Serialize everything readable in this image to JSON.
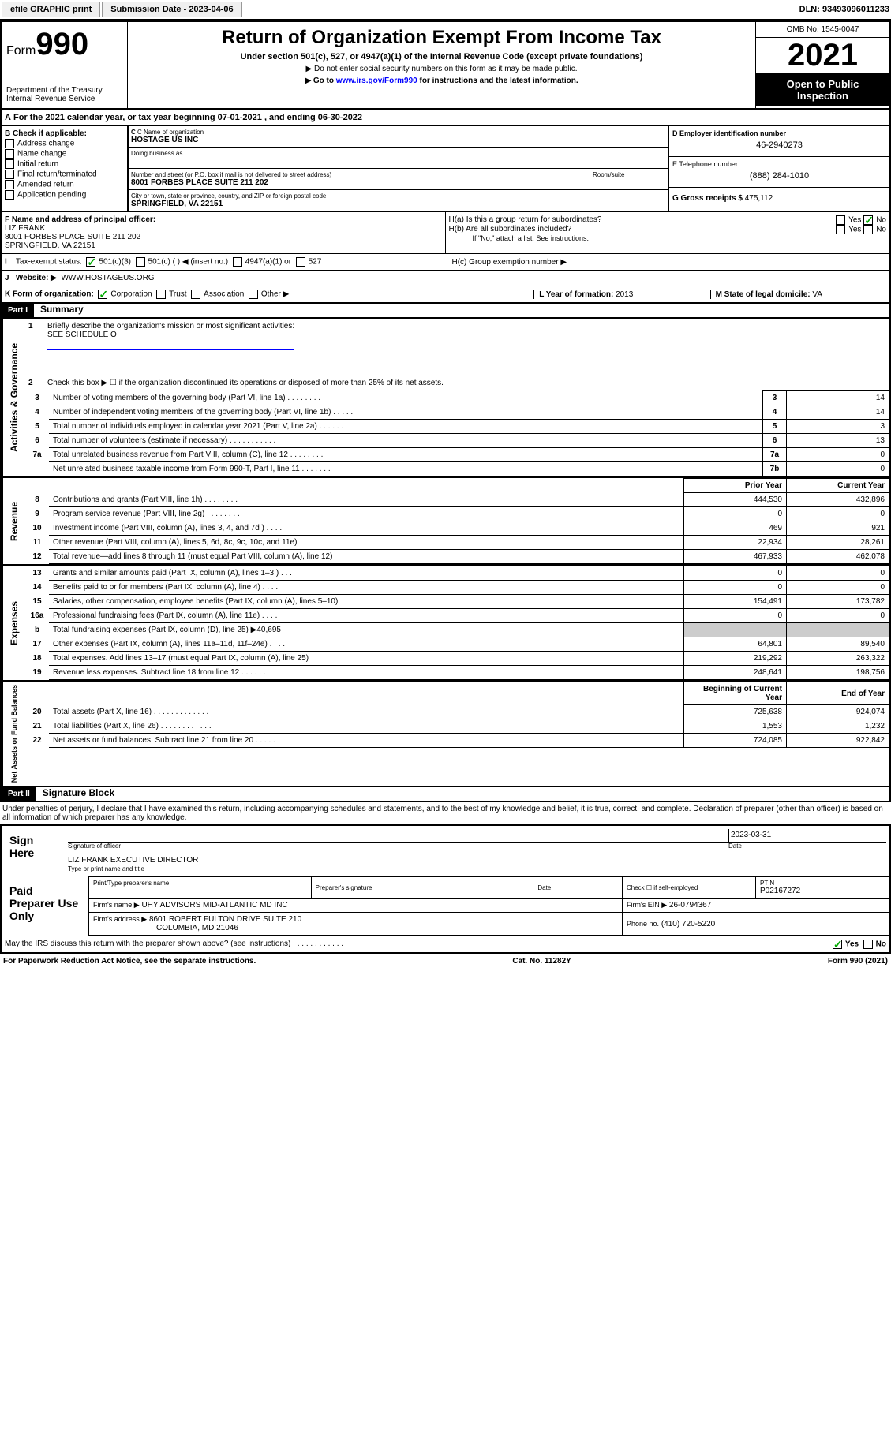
{
  "toolbar": {
    "efile": "efile GRAPHIC print",
    "submission": "Submission Date - 2023-04-06",
    "dln": "DLN: 93493096011233"
  },
  "header": {
    "form": "Form",
    "formnum": "990",
    "dept": "Department of the Treasury Internal Revenue Service",
    "title": "Return of Organization Exempt From Income Tax",
    "subtitle": "Under section 501(c), 527, or 4947(a)(1) of the Internal Revenue Code (except private foundations)",
    "note1": "▶ Do not enter social security numbers on this form as it may be made public.",
    "note2_pre": "▶ Go to ",
    "note2_link": "www.irs.gov/Form990",
    "note2_post": " for instructions and the latest information.",
    "omb": "OMB No. 1545-0047",
    "year": "2021",
    "open": "Open to Public Inspection"
  },
  "lineA": "For the 2021 calendar year, or tax year beginning 07-01-2021   , and ending 06-30-2022",
  "B": {
    "label": "B Check if applicable:",
    "opts": [
      "Address change",
      "Name change",
      "Initial return",
      "Final return/terminated",
      "Amended return",
      "Application pending"
    ]
  },
  "C": {
    "name_lbl": "C Name of organization",
    "name": "HOSTAGE US INC",
    "dba_lbl": "Doing business as",
    "dba": "",
    "addr_lbl": "Number and street (or P.O. box if mail is not delivered to street address)",
    "addr": "8001 FORBES PLACE SUITE 211 202",
    "room_lbl": "Room/suite",
    "city_lbl": "City or town, state or province, country, and ZIP or foreign postal code",
    "city": "SPRINGFIELD, VA  22151"
  },
  "D": {
    "lbl": "D Employer identification number",
    "val": "46-2940273"
  },
  "E": {
    "lbl": "E Telephone number",
    "val": "(888) 284-1010"
  },
  "G": {
    "lbl": "G Gross receipts $",
    "val": "475,112"
  },
  "F": {
    "lbl": "F  Name and address of principal officer:",
    "name": "LIZ FRANK",
    "addr": "8001 FORBES PLACE SUITE 211 202",
    "city": "SPRINGFIELD, VA  22151"
  },
  "H": {
    "a": "H(a)  Is this a group return for subordinates?",
    "b": "H(b)  Are all subordinates included?",
    "b_note": "If \"No,\" attach a list. See instructions.",
    "c": "H(c)  Group exemption number ▶",
    "yes": "Yes",
    "no": "No"
  },
  "I": {
    "lbl": "Tax-exempt status:",
    "c1": "501(c)(3)",
    "c2": "501(c) (  ) ◀ (insert no.)",
    "c3": "4947(a)(1) or",
    "c4": "527"
  },
  "J": {
    "lbl": "Website: ▶",
    "val": "WWW.HOSTAGEUS.ORG"
  },
  "K": {
    "lbl": "K Form of organization:",
    "c1": "Corporation",
    "c2": "Trust",
    "c3": "Association",
    "c4": "Other ▶"
  },
  "L": {
    "lbl": "L Year of formation:",
    "val": "2013"
  },
  "M": {
    "lbl": "M State of legal domicile:",
    "val": "VA"
  },
  "part1": {
    "hdr": "Part I",
    "title": "Summary"
  },
  "summary": {
    "l1": "Briefly describe the organization's mission or most significant activities:",
    "l1v": "SEE SCHEDULE O",
    "l2": "Check this box ▶ ☐  if the organization discontinued its operations or disposed of more than 25% of its net assets.",
    "rows_ag": [
      {
        "n": "3",
        "d": "Number of voting members of the governing body (Part VI, line 1a)   .    .    .    .    .    .    .    .",
        "b": "3",
        "v": "14"
      },
      {
        "n": "4",
        "d": "Number of independent voting members of the governing body (Part VI, line 1b)   .    .    .    .    .",
        "b": "4",
        "v": "14"
      },
      {
        "n": "5",
        "d": "Total number of individuals employed in calendar year 2021 (Part V, line 2a)   .    .    .    .    .    .",
        "b": "5",
        "v": "3"
      },
      {
        "n": "6",
        "d": "Total number of volunteers (estimate if necessary)   .    .    .    .    .    .    .    .    .    .    .    .",
        "b": "6",
        "v": "13"
      },
      {
        "n": "7a",
        "d": "Total unrelated business revenue from Part VIII, column (C), line 12   .    .    .    .    .    .    .    .",
        "b": "7a",
        "v": "0"
      },
      {
        "n": "",
        "d": "Net unrelated business taxable income from Form 990-T, Part I, line 11   .    .    .    .    .    .    .",
        "b": "7b",
        "v": "0"
      }
    ],
    "colh": {
      "prior": "Prior Year",
      "curr": "Current Year",
      "beg": "Beginning of Current Year",
      "end": "End of Year"
    },
    "rev": [
      {
        "n": "8",
        "d": "Contributions and grants (Part VIII, line 1h)    .    .    .    .    .    .    .    .",
        "p": "444,530",
        "c": "432,896"
      },
      {
        "n": "9",
        "d": "Program service revenue (Part VIII, line 2g)    .    .    .    .    .    .    .    .",
        "p": "0",
        "c": "0"
      },
      {
        "n": "10",
        "d": "Investment income (Part VIII, column (A), lines 3, 4, and 7d )    .    .    .    .",
        "p": "469",
        "c": "921"
      },
      {
        "n": "11",
        "d": "Other revenue (Part VIII, column (A), lines 5, 6d, 8c, 9c, 10c, and 11e)",
        "p": "22,934",
        "c": "28,261"
      },
      {
        "n": "12",
        "d": "Total revenue—add lines 8 through 11 (must equal Part VIII, column (A), line 12)",
        "p": "467,933",
        "c": "462,078"
      }
    ],
    "exp": [
      {
        "n": "13",
        "d": "Grants and similar amounts paid (Part IX, column (A), lines 1–3 )    .    .    .",
        "p": "0",
        "c": "0"
      },
      {
        "n": "14",
        "d": "Benefits paid to or for members (Part IX, column (A), line 4)    .    .    .    .",
        "p": "0",
        "c": "0"
      },
      {
        "n": "15",
        "d": "Salaries, other compensation, employee benefits (Part IX, column (A), lines 5–10)",
        "p": "154,491",
        "c": "173,782"
      },
      {
        "n": "16a",
        "d": "Professional fundraising fees (Part IX, column (A), line 11e)    .    .    .    .",
        "p": "0",
        "c": "0"
      },
      {
        "n": "b",
        "d": "Total fundraising expenses (Part IX, column (D), line 25) ▶40,695",
        "p": "",
        "c": "",
        "shade": true
      },
      {
        "n": "17",
        "d": "Other expenses (Part IX, column (A), lines 11a–11d, 11f–24e)    .    .    .    .",
        "p": "64,801",
        "c": "89,540"
      },
      {
        "n": "18",
        "d": "Total expenses. Add lines 13–17 (must equal Part IX, column (A), line 25)",
        "p": "219,292",
        "c": "263,322"
      },
      {
        "n": "19",
        "d": "Revenue less expenses. Subtract line 18 from line 12    .    .    .    .    .    .",
        "p": "248,641",
        "c": "198,756"
      }
    ],
    "net": [
      {
        "n": "20",
        "d": "Total assets (Part X, line 16)   .    .    .    .    .    .    .    .    .    .    .    .    .",
        "p": "725,638",
        "c": "924,074"
      },
      {
        "n": "21",
        "d": "Total liabilities (Part X, line 26)   .    .    .    .    .    .    .    .    .    .    .    .",
        "p": "1,553",
        "c": "1,232"
      },
      {
        "n": "22",
        "d": "Net assets or fund balances. Subtract line 21 from line 20   .    .    .    .    .",
        "p": "724,085",
        "c": "922,842"
      }
    ]
  },
  "verts": {
    "ag": "Activities & Governance",
    "rev": "Revenue",
    "exp": "Expenses",
    "net": "Net Assets or Fund Balances"
  },
  "part2": {
    "hdr": "Part II",
    "title": "Signature Block"
  },
  "sig": {
    "decl": "Under penalties of perjury, I declare that I have examined this return, including accompanying schedules and statements, and to the best of my knowledge and belief, it is true, correct, and complete. Declaration of preparer (other than officer) is based on all information of which preparer has any knowledge.",
    "sign_here": "Sign Here",
    "sig_officer": "Signature of officer",
    "date": "Date",
    "date_val": "2023-03-31",
    "name": "LIZ FRANK  EXECUTIVE DIRECTOR",
    "name_lbl": "Type or print name and title",
    "paid": "Paid Preparer Use Only",
    "pname_lbl": "Print/Type preparer's name",
    "psig_lbl": "Preparer's signature",
    "pdate_lbl": "Date",
    "selfemp": "Check ☐ if self-employed",
    "ptin_lbl": "PTIN",
    "ptin": "P02167272",
    "firm_lbl": "Firm's name   ▶",
    "firm": "UHY ADVISORS MID-ATLANTIC MD INC",
    "ein_lbl": "Firm's EIN ▶",
    "ein": "26-0794367",
    "faddr_lbl": "Firm's address ▶",
    "faddr": "8601 ROBERT FULTON DRIVE SUITE 210",
    "faddr2": "COLUMBIA, MD  21046",
    "phone_lbl": "Phone no.",
    "phone": "(410) 720-5220",
    "discuss": "May the IRS discuss this return with the preparer shown above? (see instructions)    .    .    .    .    .    .    .    .    .    .    .    ."
  },
  "footer": {
    "l": "For Paperwork Reduction Act Notice, see the separate instructions.",
    "c": "Cat. No. 11282Y",
    "r": "Form 990 (2021)"
  }
}
